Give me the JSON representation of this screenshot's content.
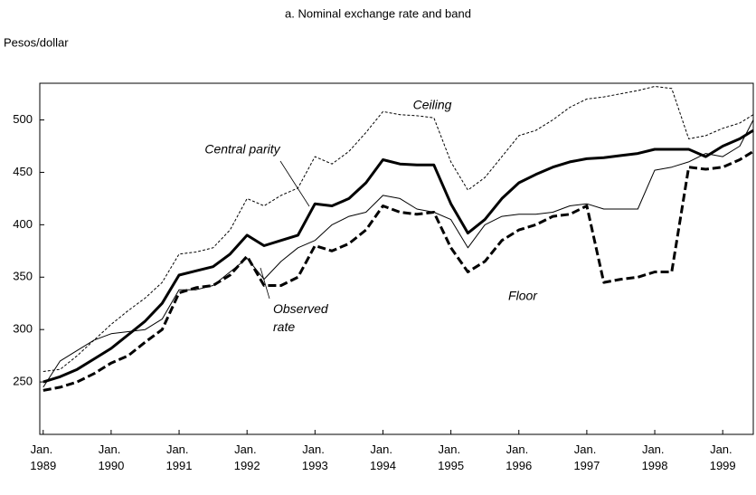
{
  "chart_data": {
    "type": "line",
    "title": "a. Nominal exchange rate and band",
    "y_label": "Pesos/dollar",
    "x": [
      1989,
      1989.25,
      1989.5,
      1989.75,
      1990,
      1990.25,
      1990.5,
      1990.75,
      1991,
      1991.25,
      1991.5,
      1991.75,
      1992,
      1992.25,
      1992.5,
      1992.75,
      1993,
      1993.25,
      1993.5,
      1993.75,
      1994,
      1994.25,
      1994.5,
      1994.75,
      1995,
      1995.25,
      1995.5,
      1995.75,
      1996,
      1996.25,
      1996.5,
      1996.75,
      1997,
      1997.25,
      1997.5,
      1997.75,
      1998,
      1998.25,
      1998.5,
      1998.75,
      1999,
      1999.25,
      1999.45
    ],
    "series": [
      {
        "name": "Ceiling",
        "color": "#000000",
        "style": "dotted",
        "width": 1,
        "values": [
          260,
          262,
          275,
          290,
          305,
          318,
          330,
          345,
          372,
          374,
          378,
          395,
          425,
          418,
          428,
          435,
          465,
          458,
          470,
          488,
          508,
          505,
          504,
          502,
          460,
          433,
          445,
          465,
          485,
          490,
          500,
          512,
          520,
          522,
          525,
          528,
          532,
          530,
          482,
          485,
          492,
          497,
          505
        ]
      },
      {
        "name": "Central parity",
        "color": "#000000",
        "style": "solid",
        "width": 3,
        "values": [
          250,
          255,
          262,
          272,
          282,
          295,
          308,
          325,
          352,
          356,
          360,
          372,
          390,
          380,
          385,
          390,
          420,
          418,
          425,
          440,
          462,
          458,
          457,
          457,
          420,
          392,
          405,
          425,
          440,
          448,
          455,
          460,
          463,
          464,
          466,
          468,
          472,
          472,
          472,
          465,
          475,
          482,
          490
        ]
      },
      {
        "name": "Observed rate",
        "color": "#000000",
        "style": "solid",
        "width": 1,
        "values": [
          245,
          270,
          280,
          290,
          296,
          298,
          300,
          310,
          338,
          338,
          342,
          355,
          368,
          348,
          365,
          378,
          385,
          400,
          408,
          412,
          428,
          425,
          415,
          412,
          405,
          378,
          400,
          408,
          410,
          410,
          412,
          418,
          420,
          415,
          415,
          415,
          452,
          455,
          460,
          468,
          465,
          475,
          500
        ]
      },
      {
        "name": "Floor",
        "color": "#000000",
        "style": "dashed",
        "width": 3,
        "values": [
          242,
          245,
          250,
          258,
          268,
          275,
          288,
          300,
          335,
          340,
          342,
          352,
          370,
          342,
          342,
          350,
          380,
          375,
          382,
          395,
          418,
          412,
          410,
          412,
          378,
          355,
          365,
          385,
          395,
          400,
          408,
          410,
          418,
          345,
          348,
          350,
          355,
          355,
          455,
          453,
          455,
          462,
          470
        ]
      }
    ],
    "xlim": [
      1988.95,
      1999.45
    ],
    "xticks": [
      {
        "value": 1989,
        "label": "Jan. 1989"
      },
      {
        "value": 1990,
        "label": "Jan. 1990"
      },
      {
        "value": 1991,
        "label": "Jan. 1991"
      },
      {
        "value": 1992,
        "label": "Jan. 1992"
      },
      {
        "value": 1993,
        "label": "Jan. 1993"
      },
      {
        "value": 1994,
        "label": "Jan. 1994"
      },
      {
        "value": 1995,
        "label": "Jan. 1995"
      },
      {
        "value": 1996,
        "label": "Jan. 1996"
      },
      {
        "value": 1997,
        "label": "Jan. 1997"
      },
      {
        "value": 1998,
        "label": "Jan. 1998"
      },
      {
        "value": 1999,
        "label": "Jan. 1999"
      }
    ],
    "ylim": [
      200,
      535
    ],
    "yticks": [
      250,
      300,
      350,
      400,
      450,
      500
    ],
    "grid": false
  }
}
